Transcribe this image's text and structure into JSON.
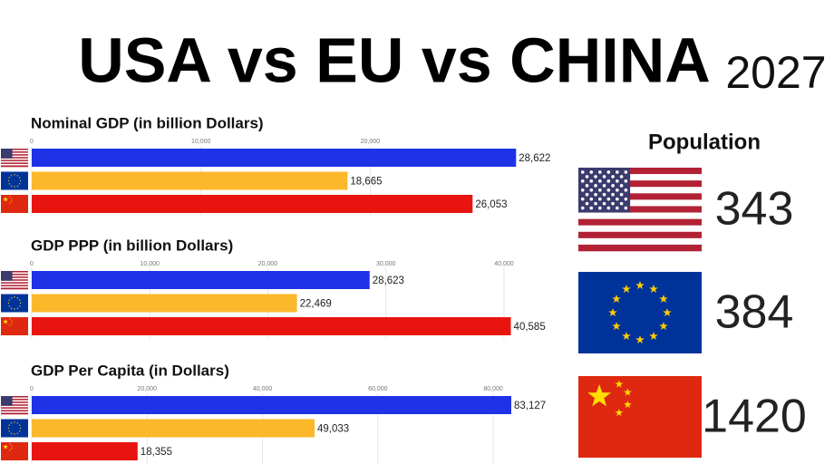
{
  "header": {
    "title": "USA vs EU vs CHINA",
    "year": "2027"
  },
  "chart_data": [
    {
      "type": "bar",
      "orientation": "horizontal",
      "title": "Nominal GDP (in billion Dollars)",
      "categories": [
        "UNITED STATES OF AMERICA",
        "EUROPEAN UNION",
        "PEOPLE'S REPUBLIC OF CHINA"
      ],
      "values": [
        28622,
        18665,
        26053
      ],
      "value_labels": [
        "28,622",
        "18,665",
        "26,053"
      ],
      "colors": [
        "#1f32e6",
        "#fbb82b",
        "#e8140f"
      ],
      "xlim": [
        0,
        30000
      ],
      "xticks": [
        0,
        {
          "value": 10000,
          "label": "10,000"
        },
        {
          "value": 20000,
          "label": "20,000"
        }
      ],
      "grid": true
    },
    {
      "type": "bar",
      "orientation": "horizontal",
      "title": "GDP PPP (in billion Dollars)",
      "categories": [
        "UNITED STATES OF AMERICA",
        "EUROPEAN UNION",
        "PEOPLE'S REPUBLIC OF CHINA"
      ],
      "values": [
        28623,
        22469,
        40585
      ],
      "value_labels": [
        "28,623",
        "22,469",
        "40,585"
      ],
      "colors": [
        "#1f32e6",
        "#fbb82b",
        "#e8140f"
      ],
      "xlim": [
        0,
        43000
      ],
      "xticks": [
        0,
        {
          "value": 10000,
          "label": "10,000"
        },
        {
          "value": 20000,
          "label": "20,000"
        },
        {
          "value": 30000,
          "label": "30,000"
        },
        {
          "value": 40000,
          "label": "40,000"
        }
      ],
      "grid": true
    },
    {
      "type": "bar",
      "orientation": "horizontal",
      "title": "GDP Per Capita (in Dollars)",
      "categories": [
        "UNITED STATES OF AMERICA",
        "EUROPEAN UNION",
        "PEOPLE'S REPUBLIC OF CHINA"
      ],
      "values": [
        83127,
        49033,
        18355
      ],
      "value_labels": [
        "83,127",
        "49,033",
        "18,355"
      ],
      "colors": [
        "#1f32e6",
        "#fbb82b",
        "#e8140f"
      ],
      "xlim": [
        0,
        88000
      ],
      "xticks": [
        0,
        {
          "value": 20000,
          "label": "20,000"
        },
        {
          "value": 40000,
          "label": "40,000"
        },
        {
          "value": 60000,
          "label": "60,000"
        },
        {
          "value": 80000,
          "label": "80,000"
        }
      ],
      "grid": true
    }
  ],
  "population": {
    "title": "Population",
    "values": [
      343,
      384,
      1420
    ]
  }
}
